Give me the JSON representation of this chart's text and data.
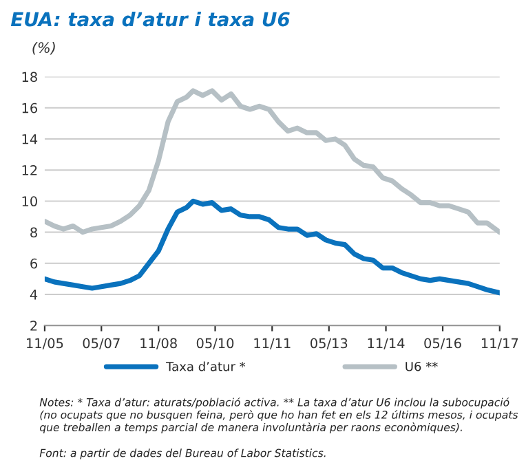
{
  "chart_data": {
    "type": "line",
    "title": "EUA: taxa d’atur i taxa U6",
    "ylabel": "(%)",
    "x": [
      "2005-11",
      "2006-02",
      "2006-05",
      "2006-08",
      "2006-11",
      "2007-02",
      "2007-05",
      "2007-08",
      "2007-11",
      "2008-02",
      "2008-05",
      "2008-08",
      "2008-11",
      "2009-02",
      "2009-05",
      "2009-08",
      "2009-10",
      "2010-01",
      "2010-04",
      "2010-07",
      "2010-10",
      "2011-01",
      "2011-04",
      "2011-07",
      "2011-10",
      "2012-01",
      "2012-04",
      "2012-07",
      "2012-10",
      "2013-01",
      "2013-04",
      "2013-07",
      "2013-10",
      "2014-01",
      "2014-04",
      "2014-07",
      "2014-10",
      "2015-01",
      "2015-04",
      "2015-07",
      "2015-10",
      "2016-01",
      "2016-04",
      "2016-07",
      "2016-10",
      "2017-01",
      "2017-04",
      "2017-07",
      "2017-11"
    ],
    "series": [
      {
        "name": "Taxa d’atur *",
        "color": "#0a72bd",
        "values": [
          5.0,
          4.8,
          4.7,
          4.6,
          4.5,
          4.4,
          4.5,
          4.6,
          4.7,
          4.9,
          5.2,
          6.0,
          6.8,
          8.2,
          9.3,
          9.6,
          10.0,
          9.8,
          9.9,
          9.4,
          9.5,
          9.1,
          9.0,
          9.0,
          8.8,
          8.3,
          8.2,
          8.2,
          7.8,
          7.9,
          7.5,
          7.3,
          7.2,
          6.6,
          6.3,
          6.2,
          5.7,
          5.7,
          5.4,
          5.2,
          5.0,
          4.9,
          5.0,
          4.9,
          4.8,
          4.7,
          4.5,
          4.3,
          4.1
        ]
      },
      {
        "name": "U6 **",
        "color": "#b6c0c5",
        "values": [
          8.7,
          8.4,
          8.2,
          8.4,
          8.0,
          8.2,
          8.3,
          8.4,
          8.7,
          9.1,
          9.7,
          10.7,
          12.6,
          15.1,
          16.4,
          16.7,
          17.1,
          16.8,
          17.1,
          16.5,
          16.9,
          16.1,
          15.9,
          16.1,
          15.9,
          15.1,
          14.5,
          14.7,
          14.4,
          14.4,
          13.9,
          14.0,
          13.6,
          12.7,
          12.3,
          12.2,
          11.5,
          11.3,
          10.8,
          10.4,
          9.9,
          9.9,
          9.7,
          9.7,
          9.5,
          9.3,
          8.6,
          8.6,
          8.0
        ]
      }
    ],
    "xlim": [
      "2005-11",
      "2017-11"
    ],
    "xticks": [
      {
        "value": "2005-11",
        "label": "11/05"
      },
      {
        "value": "2007-05",
        "label": "05/07"
      },
      {
        "value": "2008-11",
        "label": "11/08"
      },
      {
        "value": "2010-05",
        "label": "05/10"
      },
      {
        "value": "2011-11",
        "label": "11/11"
      },
      {
        "value": "2013-05",
        "label": "05/13"
      },
      {
        "value": "2014-11",
        "label": "11/14"
      },
      {
        "value": "2016-05",
        "label": "05/16"
      },
      {
        "value": "2017-11",
        "label": "11/17"
      }
    ],
    "ylim": [
      2,
      18
    ],
    "yticks": [
      2,
      4,
      6,
      8,
      10,
      12,
      14,
      16,
      18
    ],
    "grid": "y",
    "legend": "bottom",
    "line_style": "solid",
    "annotations": [
      "Notes: * Taxa d’atur: aturats/població activa. ** La taxa d’atur U6 inclou la subocupació (no ocupats que no busquen feina, però que ho han fet en els 12 últims mesos, i ocupats que treballen a temps parcial de manera involuntària per raons econòmiques).",
      "Font: a partir de dades del Bureau of Labor Statistics."
    ]
  }
}
